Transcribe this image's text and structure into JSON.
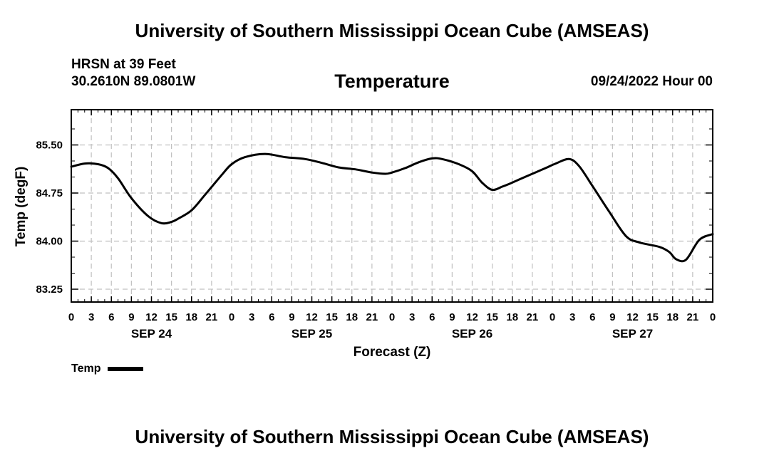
{
  "header": {
    "title": "University of Southern Mississippi Ocean Cube (AMSEAS)",
    "station": "HRSN at 39 Feet",
    "location": "30.2610N  89.0801W",
    "parameter": "Temperature",
    "datetime": "09/24/2022 Hour 00"
  },
  "footer": {
    "title": "University of Southern Mississippi Ocean Cube (AMSEAS)"
  },
  "colors": {
    "line": "#000000",
    "grid": "#c0c0c0",
    "axis": "#000000"
  },
  "chart_data": {
    "type": "line",
    "title": "Temperature",
    "xlabel": "Forecast (Z)",
    "ylabel": "Temp (degF)",
    "xlim": [
      0,
      96
    ],
    "ylim": [
      83.05,
      86.05
    ],
    "y_ticks": [
      "85.50",
      "84.75",
      "84.00",
      "83.25"
    ],
    "y_tick_values": [
      85.5,
      84.75,
      84.0,
      83.25
    ],
    "x_tick_labels": [
      "0",
      "3",
      "6",
      "9",
      "12",
      "15",
      "18",
      "21",
      "0",
      "3",
      "6",
      "9",
      "12",
      "15",
      "18",
      "21",
      "0",
      "3",
      "6",
      "9",
      "12",
      "15",
      "18",
      "21",
      "0",
      "3",
      "6",
      "9",
      "12",
      "15",
      "18",
      "21",
      "0"
    ],
    "day_labels": [
      {
        "label": "SEP 24",
        "hour": 12
      },
      {
        "label": "SEP 25",
        "hour": 36
      },
      {
        "label": "SEP 26",
        "hour": 60
      },
      {
        "label": "SEP 27",
        "hour": 84
      }
    ],
    "grid": true,
    "legend_position": "bottom-left",
    "series": [
      {
        "name": "Temp",
        "x": [
          0,
          2,
          4,
          5.5,
          7,
          9,
          11.5,
          13.5,
          15,
          16,
          18,
          20,
          22.5,
          24,
          26,
          29,
          32,
          35,
          37.5,
          40,
          42.5,
          45,
          47,
          48,
          50,
          52,
          54,
          55.5,
          58,
          60,
          61.5,
          63,
          64.5,
          65.5,
          67,
          69,
          71,
          72.5,
          74.5,
          76,
          78,
          80.5,
          83,
          85,
          88,
          89.5,
          90.5,
          92,
          94,
          96
        ],
        "values": [
          85.16,
          85.21,
          85.2,
          85.14,
          84.98,
          84.67,
          84.39,
          84.28,
          84.3,
          84.35,
          84.48,
          84.72,
          85.03,
          85.2,
          85.31,
          85.36,
          85.31,
          85.28,
          85.22,
          85.15,
          85.12,
          85.07,
          85.05,
          85.07,
          85.14,
          85.23,
          85.29,
          85.28,
          85.2,
          85.09,
          84.91,
          84.8,
          84.85,
          84.89,
          84.96,
          85.05,
          85.14,
          85.21,
          85.28,
          85.17,
          84.86,
          84.46,
          84.08,
          83.98,
          83.91,
          83.83,
          83.72,
          83.71,
          84.02,
          84.11
        ]
      }
    ]
  },
  "legend": {
    "label": "Temp"
  }
}
